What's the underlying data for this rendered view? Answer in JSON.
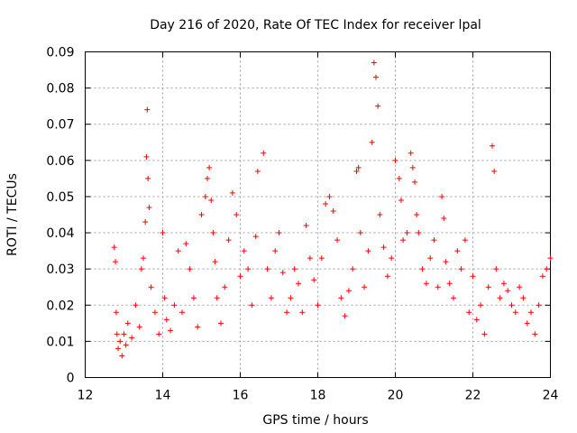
{
  "chart_data": {
    "type": "scatter",
    "title": "Day 216 of 2020, Rate Of TEC Index for receiver lpal",
    "xlabel": "GPS time / hours",
    "ylabel": "ROTI / TECUs",
    "xlim": [
      12,
      24
    ],
    "ylim": [
      0,
      0.09
    ],
    "xticks": [
      "12",
      "14",
      "16",
      "18",
      "20",
      "22",
      "24"
    ],
    "yticks": [
      "0",
      "0.01",
      "0.02",
      "0.03",
      "0.04",
      "0.05",
      "0.06",
      "0.07",
      "0.08",
      "0.09"
    ],
    "grid": true,
    "marker": "+",
    "color": "#ff0000",
    "series": [
      {
        "name": "ROTI",
        "x": [
          12.75,
          12.78,
          12.8,
          12.82,
          12.85,
          12.9,
          12.95,
          13.0,
          13.05,
          13.1,
          13.2,
          13.3,
          13.4,
          13.45,
          13.5,
          13.55,
          13.58,
          13.6,
          13.62,
          13.65,
          13.7,
          13.8,
          13.9,
          14.0,
          14.05,
          14.1,
          14.2,
          14.3,
          14.4,
          14.5,
          14.6,
          14.7,
          14.8,
          14.9,
          15.0,
          15.1,
          15.15,
          15.2,
          15.25,
          15.3,
          15.35,
          15.4,
          15.5,
          15.6,
          15.7,
          15.8,
          15.9,
          16.0,
          16.1,
          16.2,
          16.3,
          16.4,
          16.45,
          16.6,
          16.7,
          16.8,
          16.9,
          17.0,
          17.1,
          17.2,
          17.3,
          17.4,
          17.5,
          17.6,
          17.7,
          17.8,
          17.9,
          18.0,
          18.1,
          18.2,
          18.3,
          18.4,
          18.5,
          18.6,
          18.7,
          18.8,
          18.9,
          19.0,
          19.05,
          19.1,
          19.2,
          19.3,
          19.4,
          19.45,
          19.5,
          19.55,
          19.6,
          19.7,
          19.8,
          19.9,
          20.0,
          20.1,
          20.15,
          20.2,
          20.3,
          20.4,
          20.45,
          20.5,
          20.55,
          20.6,
          20.7,
          20.8,
          20.9,
          21.0,
          21.1,
          21.2,
          21.25,
          21.3,
          21.4,
          21.5,
          21.6,
          21.7,
          21.8,
          21.9,
          22.0,
          22.1,
          22.2,
          22.3,
          22.4,
          22.5,
          22.55,
          22.6,
          22.7,
          22.8,
          22.9,
          23.0,
          23.1,
          23.2,
          23.3,
          23.4,
          23.5,
          23.6,
          23.7,
          23.8,
          23.9,
          24.0
        ],
        "y": [
          0.036,
          0.032,
          0.018,
          0.012,
          0.008,
          0.01,
          0.006,
          0.012,
          0.009,
          0.015,
          0.011,
          0.02,
          0.014,
          0.03,
          0.033,
          0.043,
          0.061,
          0.074,
          0.055,
          0.047,
          0.025,
          0.018,
          0.012,
          0.04,
          0.022,
          0.016,
          0.013,
          0.02,
          0.035,
          0.018,
          0.037,
          0.03,
          0.022,
          0.014,
          0.045,
          0.05,
          0.055,
          0.058,
          0.049,
          0.04,
          0.032,
          0.022,
          0.015,
          0.025,
          0.038,
          0.051,
          0.045,
          0.028,
          0.035,
          0.03,
          0.02,
          0.039,
          0.057,
          0.062,
          0.03,
          0.022,
          0.035,
          0.04,
          0.029,
          0.018,
          0.022,
          0.03,
          0.026,
          0.018,
          0.042,
          0.033,
          0.027,
          0.02,
          0.033,
          0.048,
          0.05,
          0.046,
          0.038,
          0.022,
          0.017,
          0.024,
          0.03,
          0.057,
          0.058,
          0.04,
          0.025,
          0.035,
          0.065,
          0.087,
          0.083,
          0.075,
          0.045,
          0.036,
          0.028,
          0.033,
          0.06,
          0.055,
          0.049,
          0.038,
          0.04,
          0.062,
          0.058,
          0.054,
          0.045,
          0.04,
          0.03,
          0.026,
          0.033,
          0.038,
          0.025,
          0.05,
          0.044,
          0.032,
          0.026,
          0.022,
          0.035,
          0.03,
          0.038,
          0.018,
          0.028,
          0.016,
          0.02,
          0.012,
          0.025,
          0.064,
          0.057,
          0.03,
          0.022,
          0.026,
          0.024,
          0.02,
          0.018,
          0.025,
          0.022,
          0.015,
          0.018,
          0.012,
          0.02,
          0.028,
          0.03,
          0.033
        ]
      }
    ]
  }
}
